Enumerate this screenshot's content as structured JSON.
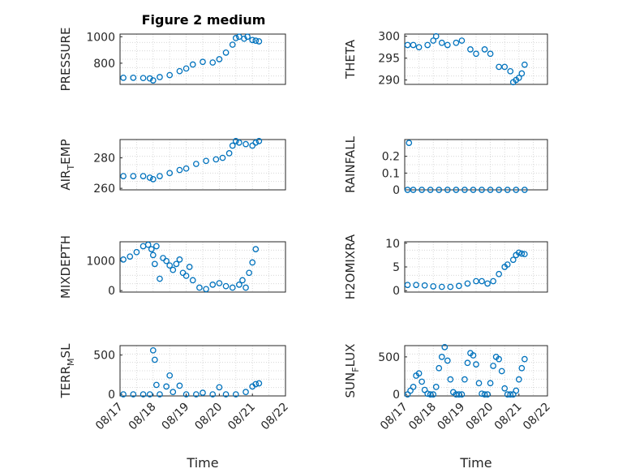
{
  "figure": {
    "title": "Figure 2 medium"
  },
  "colors": {
    "marker": "#0072bd",
    "axis": "#262626",
    "grid": "#d0d0d0"
  },
  "chart_data": [
    {
      "type": "scatter",
      "ylabel": "PRESSURE",
      "ylim": [
        640,
        1020
      ],
      "yticks": [
        800,
        1000
      ],
      "xlim": [
        0,
        5
      ],
      "xticks": [],
      "x": [
        0.1,
        0.4,
        0.7,
        0.9,
        1.0,
        1.2,
        1.5,
        1.8,
        2.0,
        2.2,
        2.5,
        2.8,
        3.0,
        3.2,
        3.4,
        3.5,
        3.6,
        3.75,
        3.85,
        4.0,
        4.1,
        4.2
      ],
      "y": [
        690,
        690,
        688,
        685,
        670,
        695,
        710,
        740,
        760,
        790,
        810,
        805,
        830,
        880,
        940,
        990,
        1000,
        985,
        1000,
        975,
        970,
        965
      ]
    },
    {
      "type": "scatter",
      "ylabel": "THETA",
      "ylim": [
        289,
        300.5
      ],
      "yticks": [
        290,
        295,
        300
      ],
      "xlim": [
        0,
        5
      ],
      "xticks": [],
      "x": [
        0.1,
        0.3,
        0.5,
        0.8,
        1.0,
        1.1,
        1.3,
        1.5,
        1.8,
        2.0,
        2.3,
        2.5,
        2.8,
        3.0,
        3.3,
        3.5,
        3.7,
        3.8,
        3.9,
        4.0,
        4.1,
        4.2
      ],
      "y": [
        298,
        298,
        297.5,
        298,
        299,
        300,
        298.5,
        298,
        298.5,
        299,
        297,
        296,
        297,
        296,
        293,
        293,
        292,
        289.5,
        290,
        290.5,
        291.5,
        293.5
      ]
    },
    {
      "type": "scatter",
      "ylabel": "AIR_TEMP",
      "ylim": [
        259,
        292
      ],
      "yticks": [
        260,
        280
      ],
      "xlim": [
        0,
        5
      ],
      "xticks": [],
      "x": [
        0.1,
        0.4,
        0.7,
        0.9,
        1.0,
        1.2,
        1.5,
        1.8,
        2.0,
        2.3,
        2.6,
        2.9,
        3.1,
        3.3,
        3.4,
        3.5,
        3.6,
        3.8,
        4.0,
        4.1,
        4.2
      ],
      "y": [
        268,
        268,
        268,
        267,
        266,
        268,
        270,
        272,
        273,
        276,
        278,
        279,
        280,
        283,
        288,
        291,
        290,
        289,
        288,
        290,
        291
      ]
    },
    {
      "type": "scatter",
      "ylabel": "RAINFALL",
      "ylim": [
        0,
        0.3
      ],
      "yticks": [
        0,
        0.1,
        0.2
      ],
      "xlim": [
        0,
        5
      ],
      "xticks": [],
      "x": [
        0.1,
        0.15,
        0.3,
        0.6,
        0.9,
        1.2,
        1.5,
        1.8,
        2.1,
        2.4,
        2.7,
        3.0,
        3.3,
        3.6,
        3.9,
        4.2
      ],
      "y": [
        0,
        0.28,
        0,
        0,
        0,
        0,
        0,
        0,
        0,
        0,
        0,
        0,
        0,
        0,
        0,
        0
      ]
    },
    {
      "type": "scatter",
      "ylabel": "MIXDEPTH",
      "ylim": [
        -50,
        1650
      ],
      "yticks": [
        0,
        1000
      ],
      "xlim": [
        0,
        5
      ],
      "xticks": [],
      "x": [
        0.1,
        0.3,
        0.5,
        0.7,
        0.85,
        0.95,
        1.0,
        1.05,
        1.1,
        1.2,
        1.3,
        1.4,
        1.5,
        1.6,
        1.7,
        1.8,
        1.9,
        2.0,
        2.1,
        2.2,
        2.4,
        2.6,
        2.8,
        3.0,
        3.2,
        3.4,
        3.6,
        3.7,
        3.8,
        3.9,
        4.0,
        4.1
      ],
      "y": [
        1050,
        1150,
        1300,
        1500,
        1550,
        1400,
        1200,
        900,
        1500,
        400,
        1100,
        1000,
        850,
        700,
        900,
        1050,
        600,
        500,
        800,
        350,
        100,
        50,
        200,
        250,
        150,
        100,
        200,
        350,
        100,
        600,
        950,
        1400
      ]
    },
    {
      "type": "scatter",
      "ylabel": "H2OMIXRA",
      "ylim": [
        -0.3,
        10.3
      ],
      "yticks": [
        0,
        5,
        10
      ],
      "xlim": [
        0,
        5
      ],
      "xticks": [],
      "x": [
        0.1,
        0.4,
        0.7,
        1.0,
        1.3,
        1.6,
        1.9,
        2.2,
        2.5,
        2.7,
        2.9,
        3.1,
        3.3,
        3.5,
        3.6,
        3.8,
        3.9,
        4.0,
        4.1,
        4.2
      ],
      "y": [
        1.2,
        1.2,
        1.1,
        0.9,
        0.8,
        0.8,
        1.0,
        1.5,
        2.0,
        2.0,
        1.5,
        2.0,
        3.5,
        5.0,
        5.5,
        6.5,
        7.5,
        8.0,
        7.8,
        7.7
      ]
    },
    {
      "type": "scatter",
      "ylabel": "TERR_MSL",
      "ylim": [
        -20,
        620
      ],
      "yticks": [
        0,
        500
      ],
      "xlim": [
        0,
        5
      ],
      "xticks": [
        0,
        1,
        2,
        3,
        4,
        5
      ],
      "xticklabels": [
        "08/17",
        "08/18",
        "08/19",
        "08/20",
        "08/21",
        "08/22"
      ],
      "xlabel": "Time",
      "x": [
        0.1,
        0.4,
        0.7,
        0.9,
        1.0,
        1.05,
        1.1,
        1.2,
        1.4,
        1.5,
        1.6,
        1.8,
        2.0,
        2.3,
        2.5,
        2.8,
        3.0,
        3.2,
        3.5,
        3.8,
        4.0,
        4.1,
        4.2
      ],
      "y": [
        0,
        0,
        0,
        0,
        560,
        440,
        120,
        0,
        100,
        240,
        30,
        110,
        0,
        0,
        20,
        0,
        90,
        0,
        0,
        30,
        100,
        130,
        140
      ]
    },
    {
      "type": "scatter",
      "ylabel": "SUN_FLUX",
      "ylim": [
        -20,
        650
      ],
      "yticks": [
        0,
        500
      ],
      "xlim": [
        0,
        5
      ],
      "xticks": [
        0,
        1,
        2,
        3,
        4,
        5
      ],
      "xticklabels": [
        "08/17",
        "08/18",
        "08/19",
        "08/20",
        "08/21",
        "08/22"
      ],
      "xlabel": "Time",
      "x": [
        0.1,
        0.2,
        0.3,
        0.4,
        0.5,
        0.6,
        0.7,
        0.8,
        0.9,
        1.0,
        1.1,
        1.2,
        1.3,
        1.4,
        1.5,
        1.6,
        1.7,
        1.8,
        1.9,
        2.0,
        2.1,
        2.2,
        2.3,
        2.4,
        2.5,
        2.6,
        2.7,
        2.8,
        2.9,
        3.0,
        3.1,
        3.2,
        3.3,
        3.4,
        3.5,
        3.6,
        3.7,
        3.8,
        3.9,
        4.0,
        4.1,
        4.2
      ],
      "y": [
        0,
        50,
        100,
        250,
        280,
        170,
        60,
        10,
        0,
        0,
        100,
        350,
        500,
        630,
        450,
        200,
        30,
        0,
        0,
        0,
        200,
        420,
        550,
        520,
        400,
        150,
        10,
        0,
        0,
        150,
        380,
        500,
        470,
        310,
        80,
        0,
        0,
        0,
        50,
        200,
        350,
        470
      ]
    }
  ]
}
